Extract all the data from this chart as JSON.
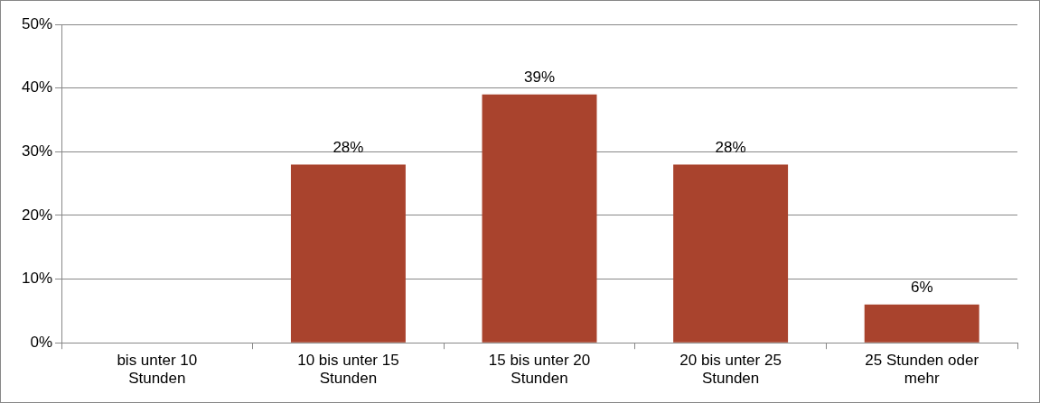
{
  "chart_data": {
    "type": "bar",
    "categories": [
      "bis unter 10 Stunden",
      "10 bis unter 15 Stunden",
      "15 bis unter 20 Stunden",
      "20 bis unter 25 Stunden",
      "25 Stunden oder mehr"
    ],
    "values": [
      0,
      28,
      39,
      28,
      6
    ],
    "value_labels": [
      null,
      "28%",
      "39%",
      "28%",
      "6%"
    ],
    "color": "#a9432d",
    "ylim": [
      0,
      50
    ],
    "yticks": [
      {
        "value": 0,
        "label": "0%"
      },
      {
        "value": 10,
        "label": "10%"
      },
      {
        "value": 20,
        "label": "20%"
      },
      {
        "value": 30,
        "label": "30%"
      },
      {
        "value": 40,
        "label": "40%"
      },
      {
        "value": 50,
        "label": "50%"
      }
    ],
    "grid": "y",
    "legend": false
  }
}
